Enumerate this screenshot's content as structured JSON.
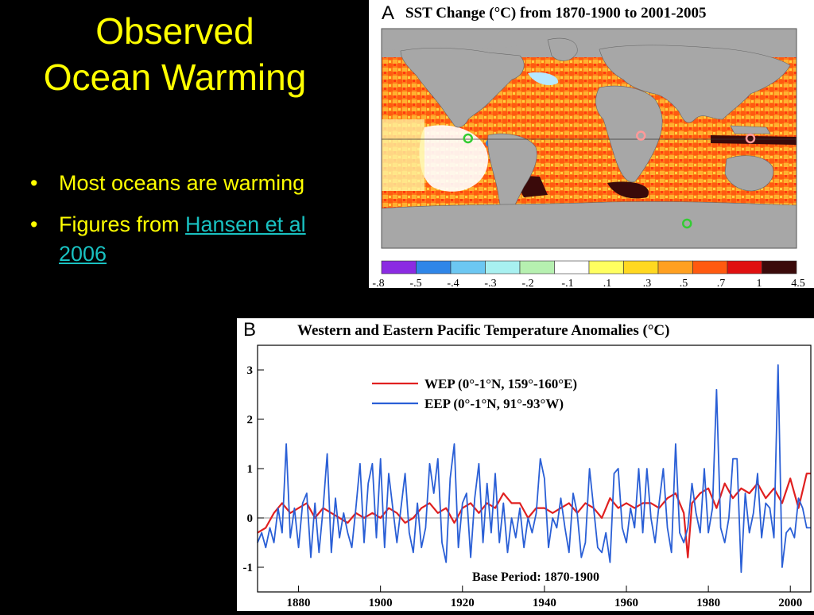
{
  "slide": {
    "title_lines": [
      "Observed",
      "Ocean Warming"
    ],
    "bullets": [
      {
        "text": "Most oceans are warming",
        "link": ""
      },
      {
        "text": "Figures from ",
        "link": "Hansen et al 2006"
      }
    ]
  },
  "colors": {
    "background": "#000000",
    "title": "#ffff00",
    "link": "#19c1c1",
    "wep_line": "#e02020",
    "eep_line": "#2a5fd6",
    "land": "#a7a7a7"
  },
  "chart_data": [
    {
      "type": "heatmap",
      "panel_label": "A",
      "title": "SST Change (°C) from 1870-1900 to 2001-2005",
      "colorbar": {
        "tick_labels": [
          "-.8",
          "-.5",
          "-.4",
          "-.3",
          "-.2",
          "-.1",
          ".1",
          ".3",
          ".5",
          ".7",
          "1",
          "4.5"
        ],
        "colors": [
          "#8b2be2",
          "#2f86e8",
          "#6cc7f2",
          "#a8f0f0",
          "#b6f0b0",
          "#ffffff",
          "#ffff60",
          "#ffd820",
          "#ffa020",
          "#ff5a10",
          "#e01010",
          "#3a0a0a"
        ]
      },
      "markers": [
        {
          "lon": -85,
          "lat": 0,
          "color": "#33cc33"
        },
        {
          "lon": 65,
          "lat": 2,
          "color": "#ff9999"
        },
        {
          "lon": 160,
          "lat": 0,
          "color": "#ff9999"
        },
        {
          "lon": 105,
          "lat": -62,
          "color": "#33cc33"
        }
      ]
    },
    {
      "type": "line",
      "panel_label": "B",
      "title": "Western and Eastern Pacific Temperature Anomalies (°C)",
      "xlim": [
        1870,
        2005
      ],
      "ylim": [
        -1.5,
        3.5
      ],
      "xticks": [
        1880,
        1900,
        1920,
        1940,
        1960,
        1980,
        2000
      ],
      "yticks": [
        -1,
        0,
        1,
        2,
        3
      ],
      "annotation": "Base Period: 1870-1900",
      "series": [
        {
          "name": "WEP (0°-1°N, 159°-160°E)",
          "color": "#e02020",
          "x": [
            1870,
            1872,
            1874,
            1876,
            1878,
            1880,
            1882,
            1884,
            1886,
            1888,
            1890,
            1892,
            1894,
            1896,
            1898,
            1900,
            1902,
            1904,
            1906,
            1908,
            1910,
            1912,
            1914,
            1916,
            1918,
            1920,
            1922,
            1924,
            1926,
            1928,
            1930,
            1932,
            1934,
            1936,
            1938,
            1940,
            1942,
            1944,
            1946,
            1948,
            1950,
            1952,
            1954,
            1956,
            1958,
            1960,
            1962,
            1964,
            1966,
            1968,
            1970,
            1972,
            1974,
            1975,
            1976,
            1978,
            1980,
            1982,
            1984,
            1986,
            1988,
            1990,
            1992,
            1994,
            1996,
            1998,
            2000,
            2002,
            2004,
            2005
          ],
          "y": [
            -0.3,
            -0.2,
            0.1,
            0.3,
            0.1,
            0.2,
            0.3,
            0.0,
            0.2,
            0.1,
            0.0,
            -0.1,
            0.1,
            0.0,
            0.1,
            0.0,
            0.2,
            0.1,
            -0.1,
            0.0,
            0.2,
            0.3,
            0.1,
            0.2,
            -0.1,
            0.2,
            0.3,
            0.1,
            0.3,
            0.2,
            0.5,
            0.3,
            0.3,
            0.0,
            0.2,
            0.2,
            0.1,
            0.2,
            0.3,
            0.1,
            0.3,
            0.2,
            0.0,
            0.4,
            0.2,
            0.3,
            0.2,
            0.3,
            0.3,
            0.2,
            0.4,
            0.5,
            0.1,
            -0.8,
            0.3,
            0.5,
            0.6,
            0.2,
            0.7,
            0.4,
            0.6,
            0.5,
            0.7,
            0.4,
            0.6,
            0.3,
            0.8,
            0.2,
            0.9,
            0.9
          ]
        },
        {
          "name": "EEP (0°-1°N, 91°-93°W)",
          "color": "#2a5fd6",
          "x": [
            1870,
            1871,
            1872,
            1873,
            1874,
            1875,
            1876,
            1877,
            1878,
            1879,
            1880,
            1881,
            1882,
            1883,
            1884,
            1885,
            1886,
            1887,
            1888,
            1889,
            1890,
            1891,
            1892,
            1893,
            1894,
            1895,
            1896,
            1897,
            1898,
            1899,
            1900,
            1901,
            1902,
            1903,
            1904,
            1905,
            1906,
            1907,
            1908,
            1909,
            1910,
            1911,
            1912,
            1913,
            1914,
            1915,
            1916,
            1917,
            1918,
            1919,
            1920,
            1921,
            1922,
            1923,
            1924,
            1925,
            1926,
            1927,
            1928,
            1929,
            1930,
            1931,
            1932,
            1933,
            1934,
            1935,
            1936,
            1937,
            1938,
            1939,
            1940,
            1941,
            1942,
            1943,
            1944,
            1945,
            1946,
            1947,
            1948,
            1949,
            1950,
            1951,
            1952,
            1953,
            1954,
            1955,
            1956,
            1957,
            1958,
            1959,
            1960,
            1961,
            1962,
            1963,
            1964,
            1965,
            1966,
            1967,
            1968,
            1969,
            1970,
            1971,
            1972,
            1973,
            1974,
            1975,
            1976,
            1977,
            1978,
            1979,
            1980,
            1981,
            1982,
            1983,
            1984,
            1985,
            1986,
            1987,
            1988,
            1989,
            1990,
            1991,
            1992,
            1993,
            1994,
            1995,
            1996,
            1997,
            1998,
            1999,
            2000,
            2001,
            2002,
            2003,
            2004,
            2005
          ],
          "y": [
            -0.5,
            -0.3,
            -0.6,
            -0.2,
            -0.5,
            0.2,
            -0.3,
            1.5,
            -0.4,
            0.2,
            -0.6,
            0.3,
            0.5,
            -0.8,
            0.3,
            -0.7,
            0.2,
            1.3,
            -0.7,
            0.4,
            -0.4,
            0.1,
            -0.3,
            -0.6,
            0.2,
            1.1,
            -0.5,
            0.7,
            1.1,
            -0.4,
            1.2,
            -0.6,
            0.9,
            0.2,
            -0.5,
            0.2,
            0.9,
            -0.3,
            -0.7,
            0.3,
            -0.6,
            -0.2,
            1.1,
            0.5,
            1.2,
            -0.5,
            -0.9,
            0.8,
            1.5,
            -0.6,
            0.3,
            0.5,
            -0.8,
            0.4,
            1.1,
            -0.5,
            0.7,
            -0.3,
            0.9,
            -0.5,
            0.3,
            -0.7,
            0.0,
            -0.4,
            0.2,
            -0.6,
            0.0,
            -0.3,
            0.1,
            1.2,
            0.8,
            -0.6,
            0.0,
            -0.2,
            0.4,
            -0.2,
            -0.7,
            0.5,
            0.1,
            -0.8,
            -0.5,
            1.0,
            0.2,
            -0.6,
            -0.7,
            -0.3,
            -0.9,
            0.9,
            1.0,
            -0.2,
            -0.5,
            0.2,
            -0.2,
            1.0,
            -0.3,
            1.0,
            0.0,
            -0.5,
            0.3,
            1.0,
            -0.2,
            -0.7,
            1.5,
            -0.3,
            -0.5,
            -0.2,
            0.7,
            0.1,
            -0.3,
            1.0,
            -0.3,
            0.2,
            2.6,
            -0.2,
            -0.5,
            0.0,
            1.2,
            1.2,
            -1.1,
            0.5,
            -0.3,
            0.1,
            0.9,
            -0.4,
            0.3,
            0.2,
            -0.4,
            3.1,
            -1.0,
            -0.3,
            -0.2,
            -0.4,
            0.4,
            0.2,
            -0.2,
            -0.2
          ]
        }
      ]
    }
  ]
}
